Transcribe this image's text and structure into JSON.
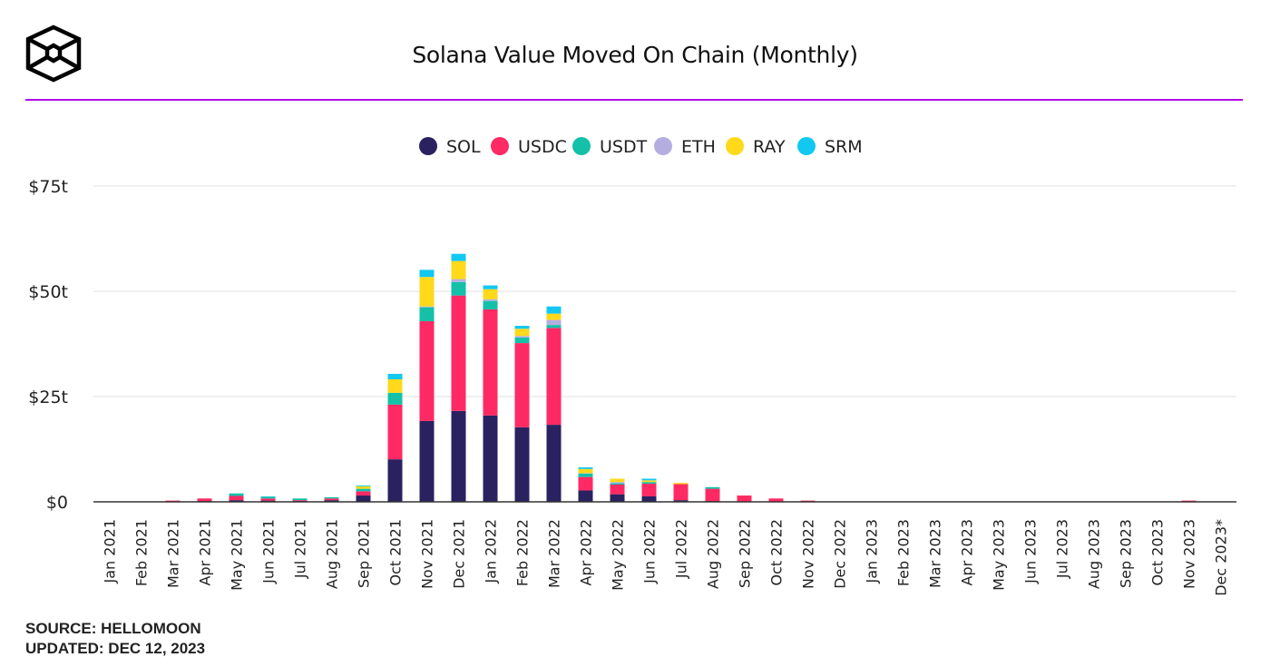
{
  "header": {
    "title": "Solana Value Moved On Chain (Monthly)"
  },
  "footer": {
    "source": "SOURCE: HELLOMOON",
    "updated": "UPDATED: DEC 12, 2023"
  },
  "chart_data": {
    "type": "bar",
    "stacked": true,
    "title": "Solana Value Moved On Chain (Monthly)",
    "xlabel": "",
    "ylabel": "",
    "ylim": [
      0,
      75
    ],
    "y_ticks": [
      {
        "v": 0,
        "label": "$0"
      },
      {
        "v": 25,
        "label": "$25t"
      },
      {
        "v": 50,
        "label": "$50t"
      },
      {
        "v": 75,
        "label": "$75t"
      }
    ],
    "grid": true,
    "legend_position": "top-center",
    "categories": [
      "Jan 2021",
      "Feb 2021",
      "Mar 2021",
      "Apr 2021",
      "May 2021",
      "Jun 2021",
      "Jul 2021",
      "Aug 2021",
      "Sep 2021",
      "Oct 2021",
      "Nov 2021",
      "Dec 2021",
      "Jan 2022",
      "Feb 2022",
      "Mar 2022",
      "Apr 2022",
      "May 2022",
      "Jun 2022",
      "Jul 2022",
      "Aug 2022",
      "Sep 2022",
      "Oct 2022",
      "Nov 2022",
      "Dec 2022",
      "Jan 2023",
      "Feb 2023",
      "Mar 2023",
      "Apr 2023",
      "May 2023",
      "Jun 2023",
      "Jul 2023",
      "Aug 2023",
      "Sep 2023",
      "Oct 2023",
      "Nov 2023",
      "Dec 2023*"
    ],
    "series": [
      {
        "name": "SOL",
        "color": "#2a2160",
        "values": [
          0,
          0,
          0.1,
          0.2,
          0.4,
          0.3,
          0.2,
          0.4,
          1.5,
          10.1,
          19.2,
          21.6,
          20.5,
          17.7,
          18.3,
          2.7,
          1.8,
          1.3,
          0.4,
          0.2,
          0.1,
          0,
          0,
          0,
          0,
          0,
          0,
          0,
          0,
          0,
          0,
          0,
          0,
          0,
          0.1,
          0
        ]
      },
      {
        "name": "USDC",
        "color": "#ff2a63",
        "values": [
          0,
          0,
          0.2,
          0.6,
          1.0,
          0.5,
          0.2,
          0.4,
          1.0,
          13.0,
          23.7,
          27.4,
          25.2,
          20.0,
          23.0,
          3.2,
          2.3,
          3.0,
          3.8,
          2.9,
          1.4,
          0.8,
          0.3,
          0,
          0,
          0,
          0,
          0,
          0,
          0,
          0,
          0,
          0,
          0,
          0.2,
          0
        ]
      },
      {
        "name": "USDT",
        "color": "#14c0a8",
        "values": [
          0,
          0,
          0,
          0,
          0.6,
          0.4,
          0.4,
          0.3,
          0.6,
          2.8,
          3.3,
          3.2,
          2.0,
          1.3,
          0.7,
          0.8,
          0.3,
          0.4,
          0,
          0.4,
          0,
          0,
          0,
          0,
          0,
          0,
          0,
          0,
          0,
          0,
          0,
          0,
          0,
          0,
          0,
          0
        ]
      },
      {
        "name": "ETH",
        "color": "#b4aee0",
        "values": [
          0,
          0,
          0,
          0,
          0,
          0,
          0,
          0,
          0,
          0,
          0.2,
          0.7,
          0.4,
          0.4,
          1.2,
          0.1,
          0.3,
          0,
          0,
          0,
          0,
          0,
          0,
          0,
          0,
          0,
          0,
          0,
          0,
          0,
          0,
          0,
          0,
          0,
          0,
          0
        ]
      },
      {
        "name": "RAY",
        "color": "#ffd91a",
        "values": [
          0,
          0,
          0,
          0,
          0,
          0,
          0,
          0,
          0.6,
          3.2,
          7.0,
          4.3,
          2.4,
          1.7,
          1.5,
          1.0,
          0.8,
          0.4,
          0.3,
          0,
          0,
          0,
          0,
          0,
          0,
          0,
          0,
          0,
          0,
          0,
          0,
          0,
          0,
          0,
          0,
          0
        ]
      },
      {
        "name": "SRM",
        "color": "#12c8f0",
        "values": [
          0,
          0,
          0,
          0,
          0,
          0.1,
          0,
          0,
          0.2,
          1.3,
          1.7,
          1.7,
          0.9,
          0.7,
          1.7,
          0.4,
          0,
          0.4,
          0,
          0,
          0,
          0,
          0,
          0,
          0,
          0,
          0,
          0,
          0,
          0,
          0,
          0,
          0,
          0,
          0,
          0
        ]
      }
    ]
  }
}
